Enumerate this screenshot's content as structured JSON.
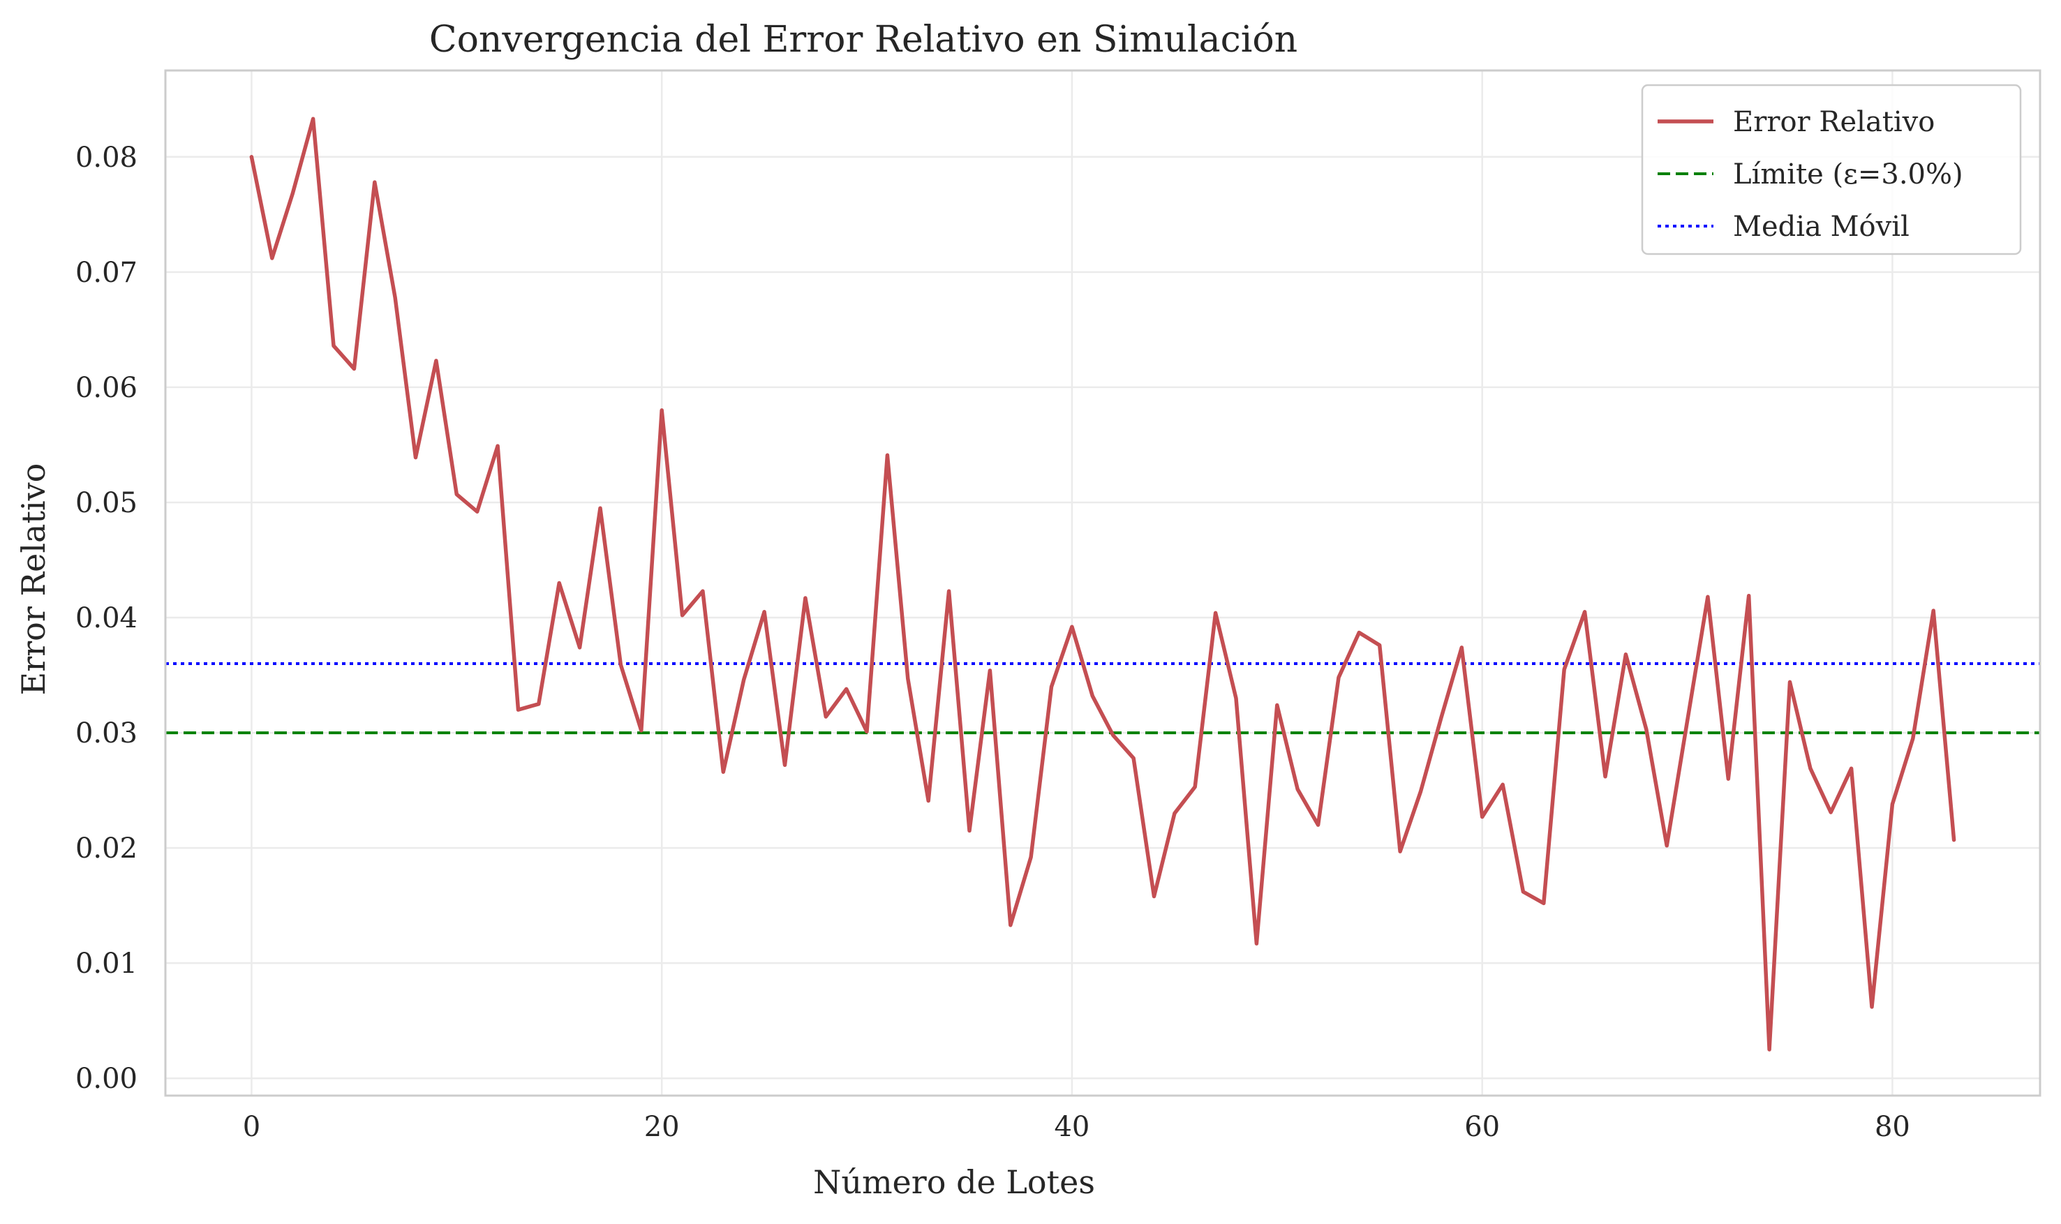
{
  "chart_data": {
    "type": "line",
    "title": "Convergencia del Error Relativo en Simulación",
    "xlabel": "Número de Lotes",
    "ylabel": "Error Relativo",
    "xlim": [
      -4.2,
      87.2
    ],
    "ylim": [
      -0.0015,
      0.0875
    ],
    "xticks": [
      0,
      20,
      40,
      60,
      80
    ],
    "yticks": [
      0.0,
      0.01,
      0.02,
      0.03,
      0.04,
      0.05,
      0.06,
      0.07,
      0.08
    ],
    "ytick_labels": [
      "0.00",
      "0.01",
      "0.02",
      "0.03",
      "0.04",
      "0.05",
      "0.06",
      "0.07",
      "0.08"
    ],
    "grid": true,
    "legend_position": "top-right",
    "series": [
      {
        "name": "Error Relativo",
        "color": "#c44e52",
        "style": "solid",
        "x": [
          0,
          1,
          2,
          3,
          4,
          5,
          6,
          7,
          8,
          9,
          10,
          11,
          12,
          13,
          14,
          15,
          16,
          17,
          18,
          19,
          20,
          21,
          22,
          23,
          24,
          25,
          26,
          27,
          28,
          29,
          30,
          31,
          32,
          33,
          34,
          35,
          36,
          37,
          38,
          39,
          40,
          41,
          42,
          43,
          44,
          45,
          46,
          47,
          48,
          49,
          50,
          51,
          52,
          53,
          54,
          55,
          56,
          57,
          58,
          59,
          60,
          61,
          62,
          63,
          64,
          65,
          66,
          67,
          68,
          69,
          70,
          71,
          72,
          73,
          74,
          75,
          76,
          77,
          78,
          79,
          80,
          81,
          82,
          83
        ],
        "values": [
          0.08,
          0.0712,
          0.0768,
          0.0833,
          0.0636,
          0.0616,
          0.0778,
          0.0678,
          0.0539,
          0.0623,
          0.0507,
          0.0492,
          0.0549,
          0.032,
          0.0325,
          0.043,
          0.0374,
          0.0495,
          0.0359,
          0.0302,
          0.058,
          0.0402,
          0.0423,
          0.0266,
          0.0346,
          0.0405,
          0.0272,
          0.0417,
          0.0314,
          0.0338,
          0.0301,
          0.0541,
          0.0347,
          0.0241,
          0.0423,
          0.0215,
          0.0354,
          0.0133,
          0.0192,
          0.034,
          0.0392,
          0.0332,
          0.0298,
          0.0278,
          0.0158,
          0.023,
          0.0253,
          0.0404,
          0.033,
          0.0117,
          0.0324,
          0.0251,
          0.022,
          0.0348,
          0.0387,
          0.0376,
          0.0197,
          0.0249,
          0.0313,
          0.0374,
          0.0227,
          0.0255,
          0.0162,
          0.0152,
          0.0355,
          0.0405,
          0.0262,
          0.0368,
          0.0303,
          0.0202,
          0.031,
          0.0418,
          0.026,
          0.0419,
          0.0025,
          0.0344,
          0.0269,
          0.0231,
          0.0269,
          0.0062,
          0.0238,
          0.0295,
          0.0406,
          0.0207
        ]
      },
      {
        "name": "Límite (ε=3.0%)",
        "color": "#008000",
        "style": "dashed",
        "y": 0.03
      },
      {
        "name": "Media Móvil",
        "color": "#0000ff",
        "style": "dotted",
        "y": 0.036
      }
    ]
  }
}
